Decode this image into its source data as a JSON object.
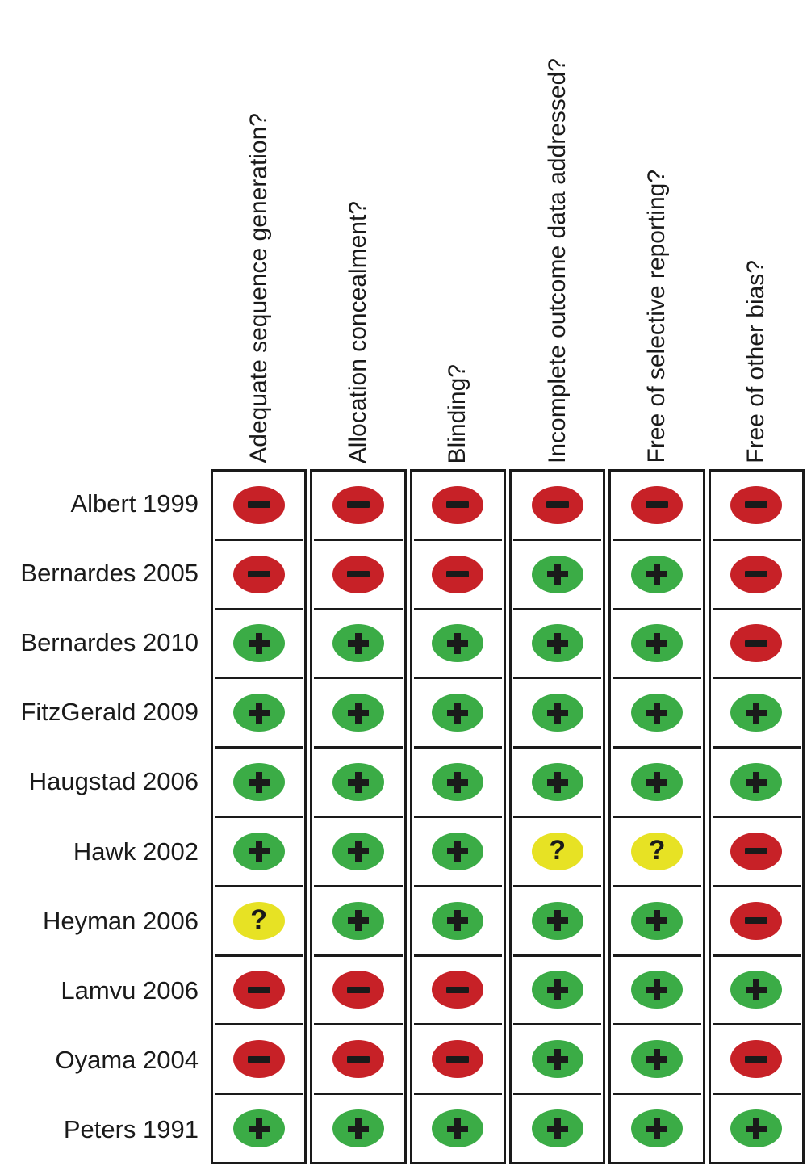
{
  "figure": {
    "type": "risk-of-bias-summary",
    "chart_data": {
      "type": "table",
      "title": "",
      "columns": [
        "Adequate sequence generation?",
        "Allocation concealment?",
        "Blinding?",
        "Incomplete outcome data addressed?",
        "Free of selective reporting?",
        "Free of other bias?"
      ],
      "rows": [
        {
          "study": "Albert 1999",
          "judgments": [
            "-",
            "-",
            "-",
            "-",
            "-",
            "-"
          ]
        },
        {
          "study": "Bernardes 2005",
          "judgments": [
            "-",
            "-",
            "-",
            "+",
            "+",
            "-"
          ]
        },
        {
          "study": "Bernardes 2010",
          "judgments": [
            "+",
            "+",
            "+",
            "+",
            "+",
            "-"
          ]
        },
        {
          "study": "FitzGerald 2009",
          "judgments": [
            "+",
            "+",
            "+",
            "+",
            "+",
            "+"
          ]
        },
        {
          "study": "Haugstad 2006",
          "judgments": [
            "+",
            "+",
            "+",
            "+",
            "+",
            "+"
          ]
        },
        {
          "study": "Hawk 2002",
          "judgments": [
            "+",
            "+",
            "+",
            "?",
            "?",
            "-"
          ]
        },
        {
          "study": "Heyman 2006",
          "judgments": [
            "?",
            "+",
            "+",
            "+",
            "+",
            "-"
          ]
        },
        {
          "study": "Lamvu 2006",
          "judgments": [
            "-",
            "-",
            "-",
            "+",
            "+",
            "+"
          ]
        },
        {
          "study": "Oyama 2004",
          "judgments": [
            "-",
            "-",
            "-",
            "+",
            "+",
            "-"
          ]
        },
        {
          "study": "Peters 1991",
          "judgments": [
            "+",
            "+",
            "+",
            "+",
            "+",
            "+"
          ]
        }
      ],
      "symbols": {
        "+": "+",
        "-": "−",
        "?": "?"
      },
      "judgment_meaning": {
        "+": "yes (low risk)",
        "-": "no (high risk)",
        "?": "unclear"
      }
    },
    "colors": {
      "+": "#3BAC46",
      "-": "#C72127",
      "?": "#E7E224",
      "symbol": "#1a1a1a",
      "grid": "#1a1a1a",
      "background": "#FFFFFF"
    }
  }
}
